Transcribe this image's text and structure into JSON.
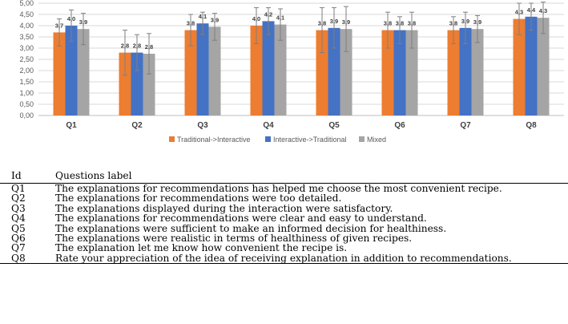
{
  "chart_data": {
    "type": "bar",
    "categories": [
      "Q1",
      "Q2",
      "Q3",
      "Q4",
      "Q5",
      "Q6",
      "Q7",
      "Q8"
    ],
    "series": [
      {
        "name": "Traditional->Interactive",
        "color": "#ED7D31",
        "values": [
          3.7,
          2.8,
          3.8,
          4.0,
          3.8,
          3.8,
          3.8,
          4.3
        ],
        "labels": [
          "3,7",
          "2,8",
          "3,8",
          "4,0",
          "3,8",
          "3,8",
          "3,8",
          "4,3"
        ],
        "error": [
          0.6,
          1.0,
          0.7,
          0.8,
          1.0,
          0.8,
          0.6,
          0.7
        ]
      },
      {
        "name": "Interactive->Traditional",
        "color": "#4472C4",
        "values": [
          4.0,
          2.8,
          4.1,
          4.2,
          3.9,
          3.8,
          3.9,
          4.4
        ],
        "labels": [
          "4,0",
          "2,8",
          "4,1",
          "4,2",
          "3,9",
          "3,8",
          "3,9",
          "4,4"
        ],
        "error": [
          0.7,
          0.8,
          0.5,
          0.6,
          0.9,
          0.6,
          0.7,
          0.6
        ]
      },
      {
        "name": "Mixed",
        "color": "#A5A5A5",
        "values": [
          3.85,
          2.75,
          3.95,
          4.05,
          3.85,
          3.8,
          3.85,
          4.35
        ],
        "labels": [
          "3,9",
          "2,8",
          "3,9",
          "4,1",
          "3,9",
          "3,8",
          "3,9",
          "4,3"
        ],
        "error": [
          0.7,
          0.9,
          0.6,
          0.7,
          1.0,
          0.8,
          0.6,
          0.7
        ]
      }
    ],
    "ylim": [
      0,
      5
    ],
    "yticks": [
      0,
      0.5,
      1,
      1.5,
      2,
      2.5,
      3,
      3.5,
      4,
      4.5,
      5
    ],
    "ytick_labels": [
      "0,00",
      "0,50",
      "1,00",
      "1,50",
      "2,00",
      "2,50",
      "3,00",
      "3,50",
      "4,00",
      "4,50",
      "5,00"
    ],
    "grid": true,
    "legend_position": "bottom"
  },
  "table": {
    "headers": {
      "id": "Id",
      "label": "Questions label"
    },
    "rows": [
      {
        "id": "Q1",
        "label": "The explanations for recommendations has helped me choose the most convenient recipe."
      },
      {
        "id": "Q2",
        "label": "The explanations for recommendations were too detailed."
      },
      {
        "id": "Q3",
        "label": "The explanations displayed during the interaction were satisfactory."
      },
      {
        "id": "Q4",
        "label": "The explanations for recommendations were clear and easy to understand."
      },
      {
        "id": "Q5",
        "label": "The explanations were sufficient to make an informed decision for healthiness."
      },
      {
        "id": "Q6",
        "label": "The explanations were realistic in terms of healthiness of given recipes."
      },
      {
        "id": "Q7",
        "label": "The explanation let me know how convenient the recipe is."
      },
      {
        "id": "Q8",
        "label": "Rate your appreciation of the idea of receiving explanation in addition to recommendations."
      }
    ]
  }
}
